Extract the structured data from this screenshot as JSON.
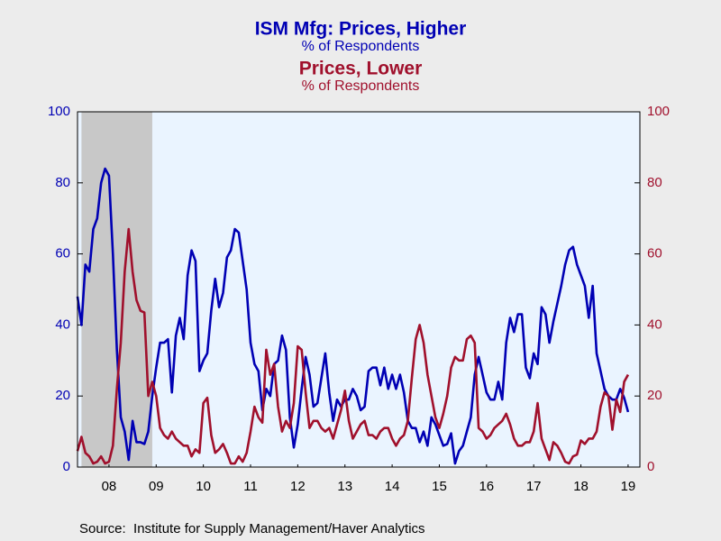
{
  "chart_data": {
    "type": "line",
    "source": "Source:  Institute for Supply Management/Haver Analytics",
    "y_label": "% of Respondents",
    "y2_label": "% of Respondents",
    "xlim": [
      2007.833,
      2019.75
    ],
    "ylim": [
      0,
      100
    ],
    "y2lim": [
      0,
      100
    ],
    "yticks": [
      0,
      20,
      40,
      60,
      80,
      100
    ],
    "y2ticks": [
      0,
      20,
      40,
      60,
      80,
      100
    ],
    "xticks": [
      {
        "value": 2008.5,
        "label": "08"
      },
      {
        "value": 2009.5,
        "label": "09"
      },
      {
        "value": 2010.5,
        "label": "10"
      },
      {
        "value": 2011.5,
        "label": "11"
      },
      {
        "value": 2012.5,
        "label": "12"
      },
      {
        "value": 2013.5,
        "label": "13"
      },
      {
        "value": 2014.5,
        "label": "14"
      },
      {
        "value": 2015.5,
        "label": "15"
      },
      {
        "value": 2016.5,
        "label": "16"
      },
      {
        "value": 2017.5,
        "label": "17"
      },
      {
        "value": 2018.5,
        "label": "18"
      },
      {
        "value": 2019.5,
        "label": "19"
      }
    ],
    "shaded": [
      2007.917,
      2009.417
    ],
    "x": [
      2007.833,
      2007.917,
      2008,
      2008.083,
      2008.167,
      2008.25,
      2008.333,
      2008.417,
      2008.5,
      2008.583,
      2008.667,
      2008.75,
      2008.833,
      2008.917,
      2009,
      2009.083,
      2009.167,
      2009.25,
      2009.333,
      2009.417,
      2009.5,
      2009.583,
      2009.667,
      2009.75,
      2009.833,
      2009.917,
      2010,
      2010.083,
      2010.167,
      2010.25,
      2010.333,
      2010.417,
      2010.5,
      2010.583,
      2010.667,
      2010.75,
      2010.833,
      2010.917,
      2011,
      2011.083,
      2011.167,
      2011.25,
      2011.333,
      2011.417,
      2011.5,
      2011.583,
      2011.667,
      2011.75,
      2011.833,
      2011.917,
      2012,
      2012.083,
      2012.167,
      2012.25,
      2012.333,
      2012.417,
      2012.5,
      2012.583,
      2012.667,
      2012.75,
      2012.833,
      2012.917,
      2013,
      2013.083,
      2013.167,
      2013.25,
      2013.333,
      2013.417,
      2013.5,
      2013.583,
      2013.667,
      2013.75,
      2013.833,
      2013.917,
      2014,
      2014.083,
      2014.167,
      2014.25,
      2014.333,
      2014.417,
      2014.5,
      2014.583,
      2014.667,
      2014.75,
      2014.833,
      2014.917,
      2015,
      2015.083,
      2015.167,
      2015.25,
      2015.333,
      2015.417,
      2015.5,
      2015.583,
      2015.667,
      2015.75,
      2015.833,
      2015.917,
      2016,
      2016.083,
      2016.167,
      2016.25,
      2016.333,
      2016.417,
      2016.5,
      2016.583,
      2016.667,
      2016.75,
      2016.833,
      2016.917,
      2017,
      2017.083,
      2017.167,
      2017.25,
      2017.333,
      2017.417,
      2017.5,
      2017.583,
      2017.667,
      2017.75,
      2017.833,
      2017.917,
      2018,
      2018.083,
      2018.167,
      2018.25,
      2018.333,
      2018.417,
      2018.5,
      2018.583,
      2018.667,
      2018.75,
      2018.833,
      2018.917,
      2019,
      2019.083,
      2019.167,
      2019.25,
      2019.333,
      2019.417,
      2019.5
    ],
    "series": [
      {
        "name": "ISM Mfg: Prices, Higher",
        "color": "#0000b4",
        "axis": "y",
        "values": [
          48,
          40,
          57,
          55,
          67,
          70,
          80,
          84,
          82,
          60,
          33,
          14,
          10,
          2,
          13,
          7,
          7,
          6.5,
          10,
          20,
          28,
          35,
          35,
          36,
          21,
          37,
          42,
          36,
          54,
          61,
          58,
          27,
          30,
          32,
          44,
          53,
          45,
          49,
          59,
          61,
          67,
          66,
          58,
          50,
          35,
          29,
          27,
          16,
          22,
          20,
          29,
          30,
          37,
          33,
          14,
          5.5,
          12,
          22,
          31,
          26,
          17,
          18,
          25,
          32,
          21,
          13,
          19,
          17,
          19,
          19,
          22,
          20,
          16,
          17,
          27,
          28,
          28,
          23,
          28,
          22,
          26,
          22,
          26,
          21,
          13,
          11,
          11,
          7,
          10,
          6,
          14,
          12,
          9,
          6,
          6.5,
          9.5,
          1,
          4.5,
          6,
          10,
          14,
          26,
          31,
          26,
          21,
          19,
          19,
          24,
          19,
          35,
          42,
          38,
          43,
          43,
          28,
          25,
          32,
          29,
          45,
          43,
          35,
          41,
          46,
          51,
          57,
          61,
          62,
          57,
          54,
          51,
          42,
          51,
          32,
          27,
          22,
          20,
          19,
          19,
          22,
          19.5,
          15.5
        ]
      },
      {
        "name": "Prices, Lower",
        "color": "#a0102c",
        "axis": "y2",
        "values": [
          4.5,
          8.5,
          4,
          3,
          1,
          1.5,
          3,
          1,
          1.5,
          6,
          22,
          35,
          55,
          67,
          55,
          47,
          44,
          43.5,
          20,
          24,
          20,
          11,
          9,
          8,
          10,
          8,
          7,
          6,
          6,
          3,
          5,
          4,
          18,
          19.5,
          9,
          4,
          5,
          6.5,
          4,
          1,
          1,
          3,
          1.5,
          4,
          10,
          17,
          14,
          12.5,
          33,
          26,
          29,
          17,
          10,
          13,
          11,
          18,
          34,
          33,
          21,
          11,
          13,
          13,
          11,
          10,
          11,
          8,
          12,
          16,
          21.5,
          13,
          8,
          10,
          12,
          13,
          9,
          9,
          8,
          10,
          11,
          11,
          8,
          6,
          8,
          9,
          13,
          25,
          36,
          40,
          35,
          26,
          20,
          14,
          11,
          15,
          20,
          28,
          31,
          30,
          30,
          36,
          37,
          35,
          11,
          10,
          8,
          9,
          11,
          12,
          13,
          15,
          12,
          8,
          6,
          6,
          7,
          7,
          10,
          18,
          8,
          5,
          2,
          7,
          6,
          4,
          1.5,
          1,
          3,
          3.5,
          7.5,
          6.5,
          8,
          8,
          10,
          17,
          21,
          20,
          10.5,
          19,
          15.5,
          24,
          26
        ]
      }
    ]
  }
}
